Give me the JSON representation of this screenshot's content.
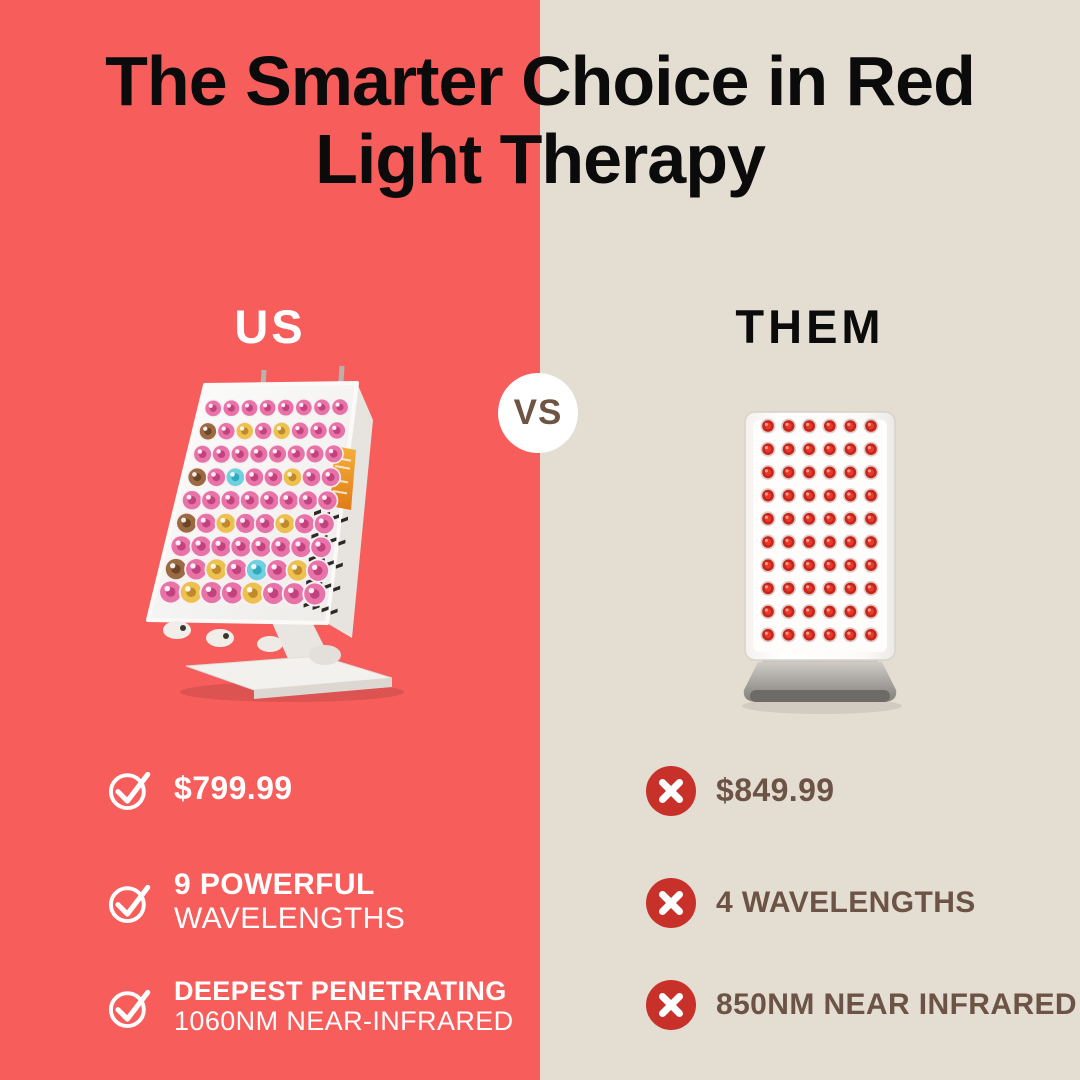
{
  "title": {
    "line1": "The Smarter Choice in Red",
    "line2": "Light Therapy"
  },
  "vs_label": "VS",
  "left": {
    "heading": "US",
    "features": [
      {
        "line1": "$799.99",
        "line2": ""
      },
      {
        "line1": "9 POWERFUL",
        "line2": "WAVELENGTHS"
      },
      {
        "line1": "DEEPEST PENETRATING",
        "line2": "1060NM NEAR-INFRARED"
      }
    ]
  },
  "right": {
    "heading": "THEM",
    "features": [
      {
        "line1": "$849.99"
      },
      {
        "line1": "4 WAVELENGTHS"
      },
      {
        "line1": "850NM NEAR INFRARED"
      }
    ]
  },
  "icons": {
    "positive": "check-circle-icon",
    "negative": "x-circle-icon"
  },
  "colors": {
    "coral": "#F75D5B",
    "beige": "#E4DDD2",
    "black": "#0B0B0B",
    "white": "#FFFFFF",
    "brown": "#6C5346",
    "vs_brown": "#6E5442",
    "x_red": "#C8302A"
  },
  "devices": {
    "us_panel": {
      "description": "angled desktop red light panel with multicolor LEDs and stand",
      "led_grid": [
        [
          "P",
          "P",
          "P",
          "P",
          "P",
          "P",
          "P",
          "P"
        ],
        [
          "B",
          "P",
          "A",
          "P",
          "A",
          "P",
          "P",
          "P"
        ],
        [
          "P",
          "P",
          "P",
          "P",
          "P",
          "P",
          "P",
          "P"
        ],
        [
          "B",
          "P",
          "C",
          "P",
          "P",
          "A",
          "P",
          "P"
        ],
        [
          "P",
          "P",
          "P",
          "P",
          "P",
          "P",
          "P",
          "P"
        ],
        [
          "B",
          "P",
          "A",
          "P",
          "P",
          "A",
          "P",
          "P"
        ],
        [
          "P",
          "P",
          "P",
          "P",
          "P",
          "P",
          "P",
          "P"
        ],
        [
          "B",
          "P",
          "A",
          "P",
          "C",
          "P",
          "A",
          "P"
        ],
        [
          "P",
          "A",
          "P",
          "P",
          "A",
          "P",
          "P",
          "P"
        ]
      ],
      "led_colors": {
        "P": {
          "main": "#E873A8",
          "dark": "#C2427E"
        },
        "A": {
          "main": "#ECC14F",
          "dark": "#C08A2A"
        },
        "B": {
          "main": "#9A6A42",
          "dark": "#6E4426"
        },
        "C": {
          "main": "#6FD0E0",
          "dark": "#2FA8C0"
        }
      }
    },
    "them_panel": {
      "description": "upright red light panel with red LEDs and silver base",
      "rows": 10,
      "cols": 6,
      "led": {
        "ring": "#B8948C",
        "body": "#C6251B",
        "core": "#E8392C",
        "glint": "#FF9D92"
      }
    }
  }
}
